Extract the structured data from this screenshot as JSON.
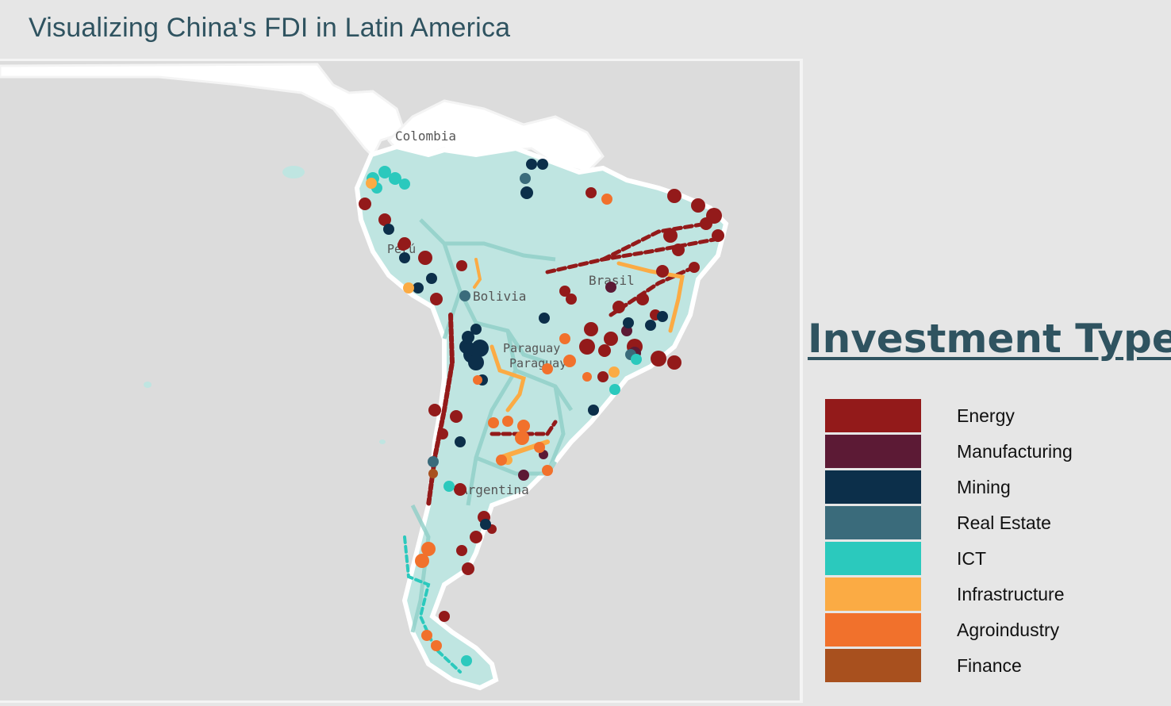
{
  "title": "Visualizing China's FDI in Latin America",
  "map": {
    "country_labels": [
      "Colombia",
      "Perú",
      "Bolivia",
      "Brasil",
      "Paraguay",
      "Paraguay",
      "Argentina"
    ],
    "colors": {
      "ocean": "#dcdcdc",
      "land_highlight": "#bfe5e1",
      "land_other": "#ffffff",
      "border": "#8fcfc8"
    }
  },
  "legend": {
    "title": "Investment Type",
    "items": [
      {
        "label": "Energy",
        "color": "#931a1a"
      },
      {
        "label": "Manufacturing",
        "color": "#5c1a35"
      },
      {
        "label": "Mining",
        "color": "#0c2f4a"
      },
      {
        "label": "Real Estate",
        "color": "#3a6b7b"
      },
      {
        "label": "ICT",
        "color": "#2bc9bd"
      },
      {
        "label": "Infrastructure",
        "color": "#fbab44"
      },
      {
        "label": "Agroindustry",
        "color": "#f1712c"
      },
      {
        "label": "Finance",
        "color": "#a8501e"
      }
    ]
  }
}
